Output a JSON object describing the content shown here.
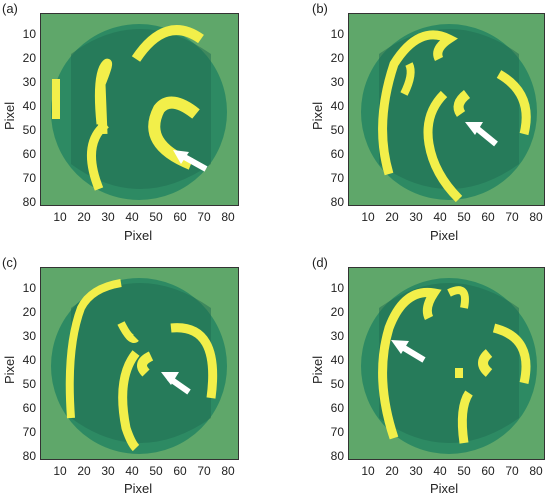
{
  "panels": [
    {
      "label": "(a)",
      "x_label": "Pixel",
      "y_label": "Pixel"
    },
    {
      "label": "(b)",
      "x_label": "Pixel",
      "y_label": "Pixel"
    },
    {
      "label": "(c)",
      "x_label": "Pixel",
      "y_label": "Pixel"
    },
    {
      "label": "(d)",
      "x_label": "Pixel",
      "y_label": "Pixel"
    }
  ],
  "y_ticks": [
    "10",
    "20",
    "30",
    "40",
    "50",
    "60",
    "70",
    "80"
  ],
  "x_ticks": [
    "10",
    "20",
    "30",
    "40",
    "50",
    "60",
    "70",
    "80"
  ],
  "colors": {
    "background_green": "#5fa76a",
    "dark_green": "#1f6b52",
    "yellow": "#f2ef4a",
    "arrow": "#ffffff"
  }
}
